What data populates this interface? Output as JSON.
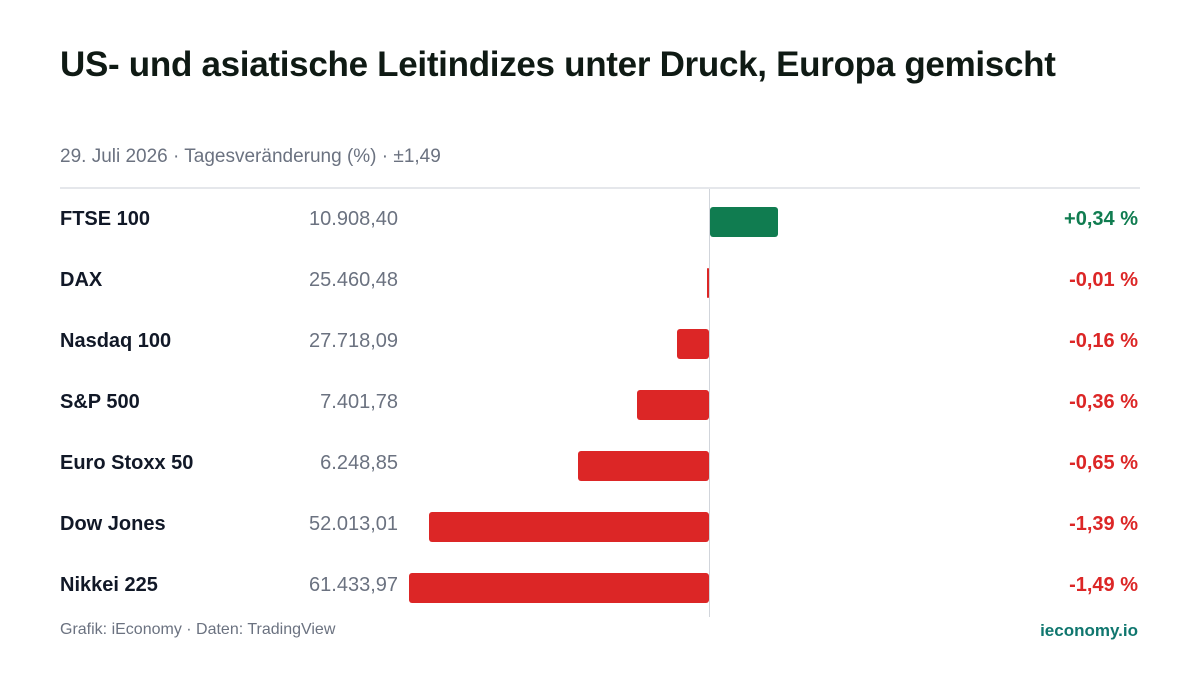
{
  "header": {
    "title": "US- und asiatische Leitindizes unter Druck, Europa gemischt",
    "subtitle": "29. Juli 2026 · Tagesveränderung (%) · ±1,49"
  },
  "colors": {
    "positive": "#107c50",
    "negative": "#dc2626"
  },
  "chart_data": {
    "type": "bar",
    "orientation": "horizontal",
    "scale_max_abs": 1.49,
    "categories": [
      "FTSE 100",
      "DAX",
      "Nasdaq 100",
      "S&P 500",
      "Euro Stoxx 50",
      "Dow Jones",
      "Nikkei 225"
    ],
    "index_levels": [
      "10.908,40",
      "25.460,48",
      "27.718,09",
      "7.401,78",
      "6.248,85",
      "52.013,01",
      "61.433,97"
    ],
    "values": [
      0.34,
      -0.01,
      -0.16,
      -0.36,
      -0.65,
      -1.39,
      -1.49
    ],
    "value_labels": [
      "+0,34 %",
      "-0,01 %",
      "-0,16 %",
      "-0,36 %",
      "-0,65 %",
      "-1,39 %",
      "-1,49 %"
    ]
  },
  "footer": {
    "source": "Grafik: iEconomy · Daten: TradingView",
    "brand": "ieconomy.io"
  }
}
